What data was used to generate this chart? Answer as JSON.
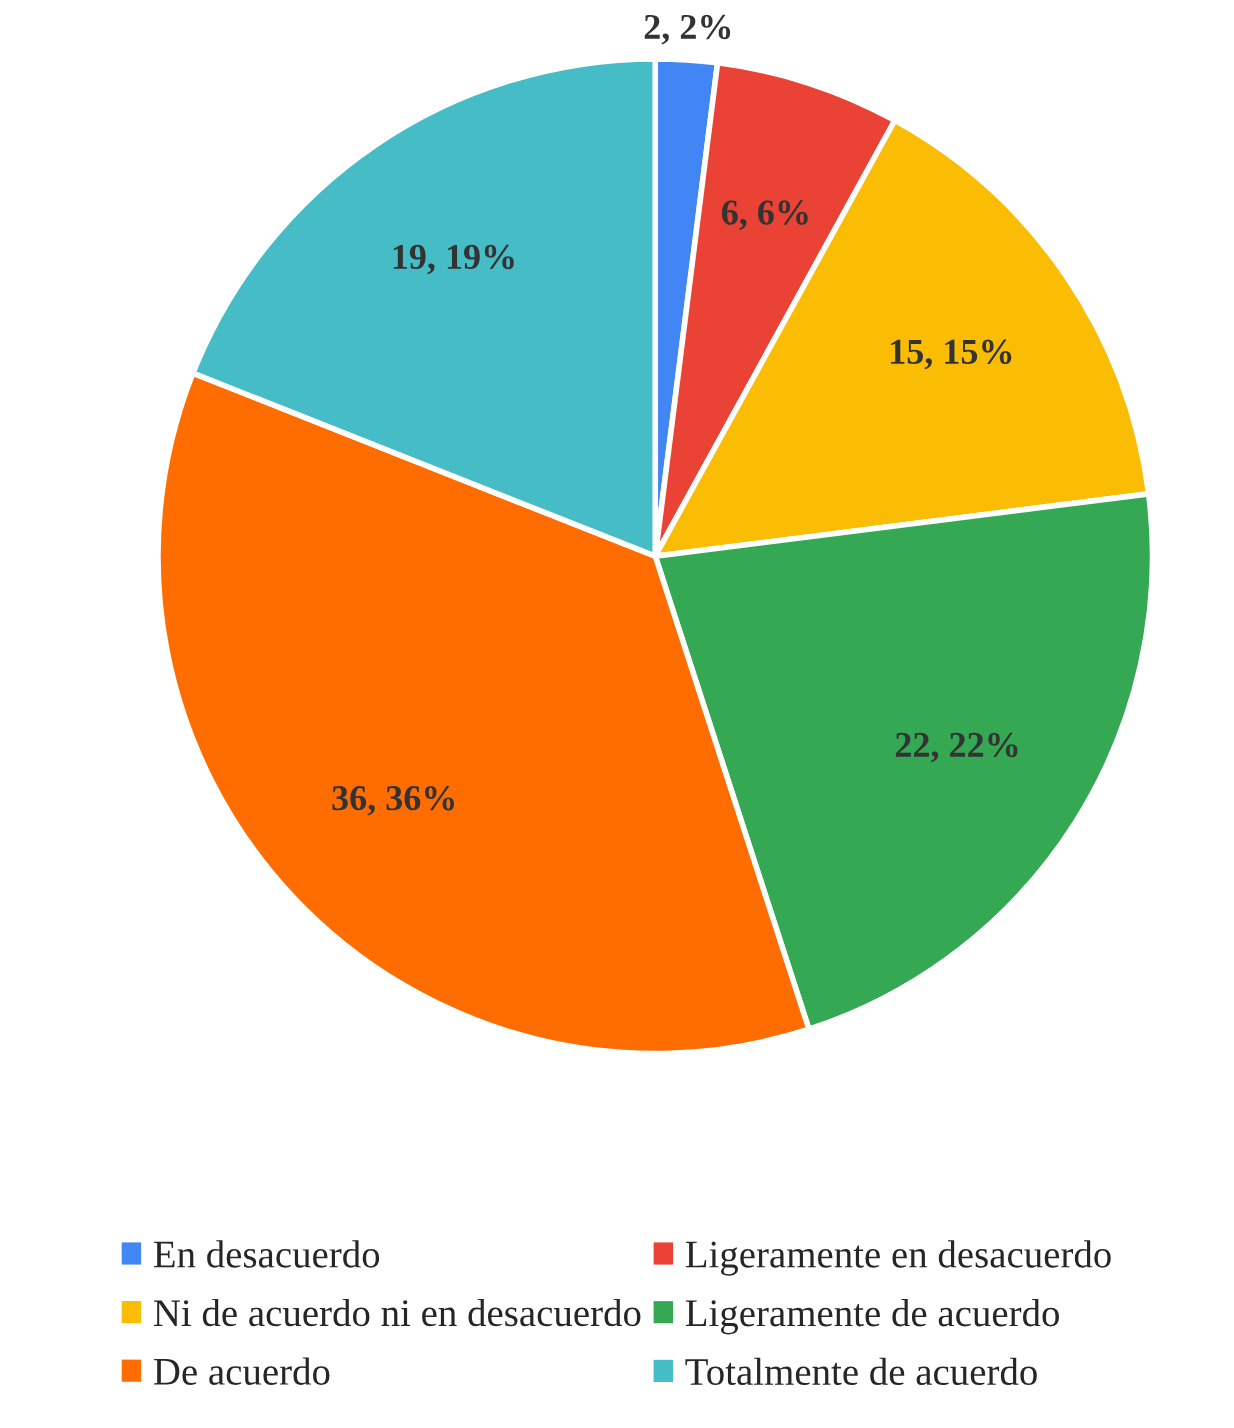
{
  "chart_data": {
    "type": "pie",
    "categories": [
      "En desacuerdo",
      "Ligeramente en desacuerdo",
      "Ni de acuerdo ni en desacuerdo",
      "Ligeramente de acuerdo",
      "De acuerdo",
      "Totalmente de acuerdo"
    ],
    "values": [
      2,
      6,
      15,
      22,
      36,
      19
    ],
    "colors": [
      "#4285f4",
      "#ea4335",
      "#fbbc04",
      "#34a853",
      "#ff6d01",
      "#46bdc6"
    ],
    "value_labels": [
      "2, 2%",
      "6, 6%",
      "15, 15%",
      "22, 22%",
      "36, 36%",
      "19, 19%"
    ],
    "legend": "bottom"
  }
}
